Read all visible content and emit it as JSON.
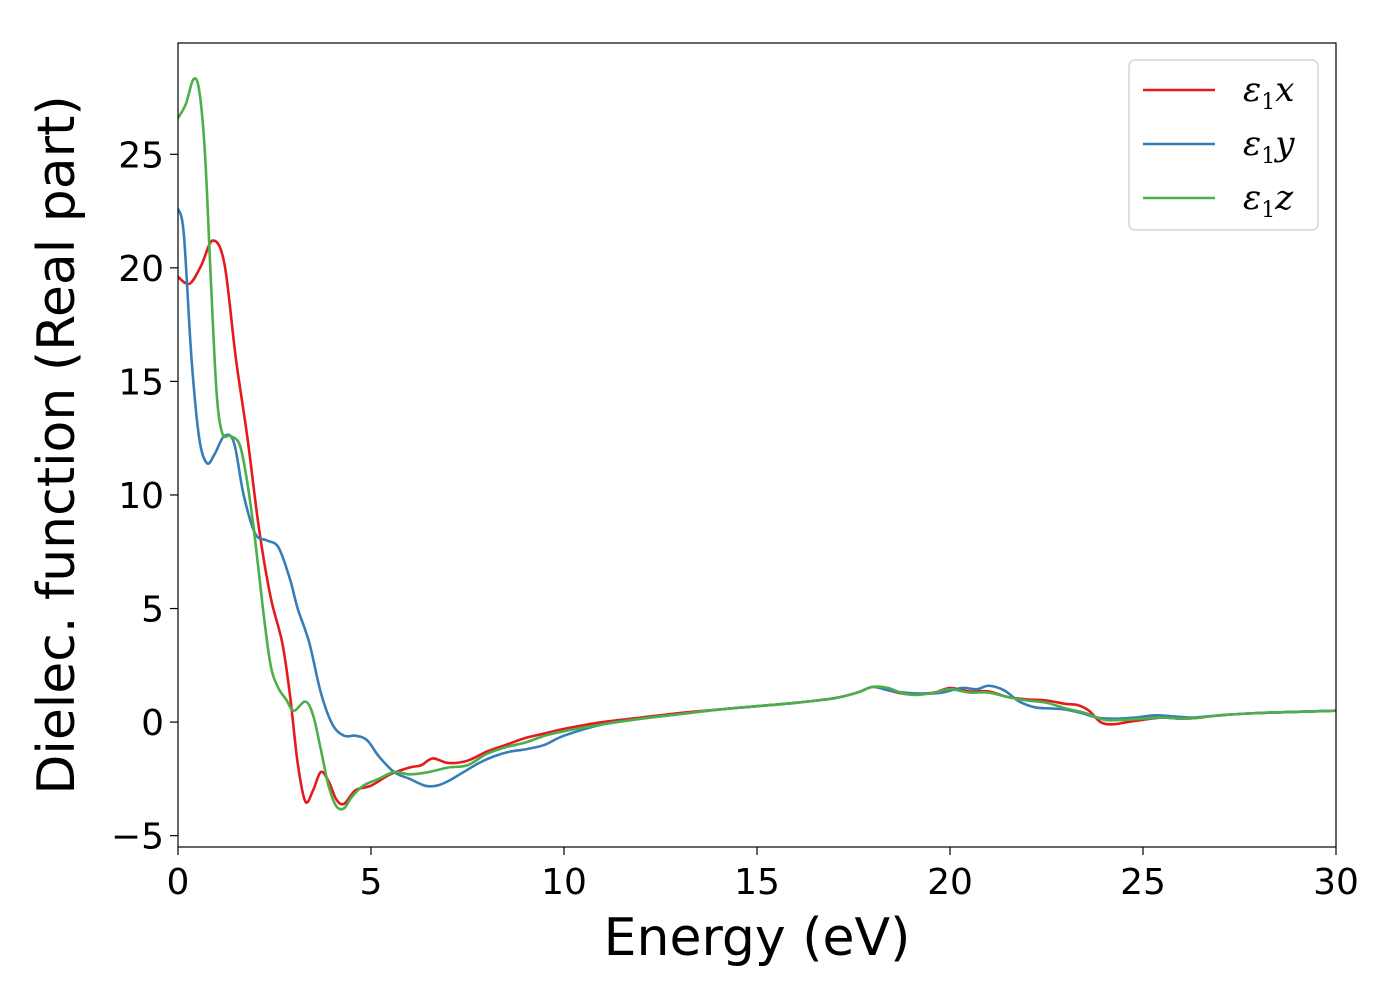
{
  "chart_data": {
    "type": "line",
    "title": "",
    "xlabel": "Energy (eV)",
    "ylabel": "Dielec. function (Real part)",
    "xlim": [
      0,
      30
    ],
    "ylim": [
      -5.5,
      29.9
    ],
    "xticks": [
      0,
      5,
      10,
      15,
      20,
      25,
      30
    ],
    "yticks": [
      -5,
      0,
      5,
      10,
      15,
      20,
      25
    ],
    "xtick_labels": [
      "0",
      "5",
      "10",
      "15",
      "20",
      "25",
      "30"
    ],
    "ytick_labels": [
      "−5",
      "0",
      "5",
      "10",
      "15",
      "20",
      "25"
    ],
    "grid": false,
    "legend_position": "top-right",
    "series": [
      {
        "name": "ε₁x",
        "symbol": "ε",
        "subscript": "1",
        "component": "x",
        "color": "#e41a1c",
        "x": [
          0,
          0.3,
          0.6,
          0.9,
          1.2,
          1.5,
          1.8,
          2.1,
          2.4,
          2.7,
          2.9,
          3.1,
          3.3,
          3.5,
          3.7,
          3.9,
          4.1,
          4.3,
          4.6,
          5.0,
          5.5,
          6.0,
          6.3,
          6.6,
          7.0,
          7.5,
          8.0,
          8.5,
          9.0,
          9.5,
          10,
          11,
          12,
          13,
          14,
          15,
          16,
          17,
          17.6,
          18.0,
          18.4,
          18.8,
          19.2,
          19.6,
          20.0,
          20.5,
          21.0,
          21.5,
          22.0,
          22.5,
          23.0,
          23.3,
          23.6,
          23.9,
          24.2,
          24.6,
          25.0,
          25.5,
          26.0,
          26.5,
          27,
          28,
          29,
          30
        ],
        "y": [
          19.6,
          19.3,
          20.1,
          21.2,
          20.2,
          16.0,
          12.5,
          8.5,
          5.5,
          3.5,
          1.2,
          -1.8,
          -3.5,
          -3.0,
          -2.2,
          -2.6,
          -3.4,
          -3.6,
          -3.0,
          -2.8,
          -2.3,
          -2.0,
          -1.9,
          -1.6,
          -1.8,
          -1.7,
          -1.3,
          -1.0,
          -0.7,
          -0.5,
          -0.3,
          0.0,
          0.2,
          0.4,
          0.55,
          0.7,
          0.85,
          1.05,
          1.3,
          1.55,
          1.4,
          1.25,
          1.25,
          1.3,
          1.5,
          1.35,
          1.35,
          1.1,
          1.0,
          0.95,
          0.8,
          0.75,
          0.5,
          0.0,
          -0.1,
          0.0,
          0.1,
          0.2,
          0.15,
          0.2,
          0.3,
          0.4,
          0.45,
          0.5
        ]
      },
      {
        "name": "ε₁y",
        "symbol": "ε",
        "subscript": "1",
        "component": "y",
        "color": "#377eb8",
        "x": [
          0,
          0.15,
          0.35,
          0.55,
          0.75,
          0.95,
          1.2,
          1.45,
          1.7,
          2.0,
          2.3,
          2.6,
          2.9,
          3.1,
          3.4,
          3.7,
          4.0,
          4.3,
          4.6,
          4.9,
          5.2,
          5.6,
          6.0,
          6.4,
          6.7,
          7.0,
          7.4,
          7.8,
          8.2,
          8.6,
          9.0,
          9.5,
          10,
          11,
          12,
          13,
          14,
          15,
          16,
          17,
          17.6,
          18.0,
          18.4,
          18.8,
          19.3,
          19.8,
          20.3,
          20.7,
          21.0,
          21.4,
          21.8,
          22.2,
          22.6,
          23.0,
          23.4,
          23.8,
          24.2,
          24.8,
          25.3,
          25.8,
          26.3,
          27,
          28,
          29,
          30
        ],
        "y": [
          22.6,
          21.5,
          16.0,
          12.5,
          11.4,
          11.8,
          12.6,
          12.3,
          10.0,
          8.3,
          8.0,
          7.7,
          6.3,
          5.0,
          3.5,
          1.3,
          -0.1,
          -0.6,
          -0.6,
          -0.8,
          -1.5,
          -2.2,
          -2.5,
          -2.8,
          -2.8,
          -2.6,
          -2.2,
          -1.8,
          -1.5,
          -1.3,
          -1.2,
          -1.0,
          -0.6,
          -0.1,
          0.15,
          0.35,
          0.55,
          0.7,
          0.85,
          1.05,
          1.3,
          1.55,
          1.4,
          1.3,
          1.25,
          1.3,
          1.5,
          1.45,
          1.6,
          1.4,
          0.9,
          0.65,
          0.6,
          0.55,
          0.4,
          0.2,
          0.15,
          0.2,
          0.3,
          0.25,
          0.2,
          0.3,
          0.4,
          0.45,
          0.5
        ]
      },
      {
        "name": "ε₁z",
        "symbol": "ε",
        "subscript": "1",
        "component": "z",
        "color": "#4daf4a",
        "x": [
          0,
          0.2,
          0.4,
          0.55,
          0.7,
          0.85,
          1.0,
          1.15,
          1.35,
          1.6,
          1.8,
          2.0,
          2.2,
          2.4,
          2.6,
          2.8,
          3.0,
          3.3,
          3.5,
          3.7,
          3.9,
          4.1,
          4.3,
          4.5,
          4.8,
          5.2,
          5.6,
          6.0,
          6.5,
          7.0,
          7.5,
          8.0,
          8.5,
          9.0,
          9.5,
          10,
          11,
          12,
          13,
          14,
          15,
          16,
          17,
          17.6,
          18.0,
          18.4,
          18.8,
          19.2,
          19.6,
          20.0,
          20.5,
          21.0,
          21.5,
          22.0,
          22.5,
          23.0,
          23.5,
          24.0,
          24.5,
          25.0,
          25.5,
          26.0,
          26.5,
          27,
          28,
          29,
          30
        ],
        "y": [
          26.6,
          27.2,
          28.3,
          27.8,
          25.0,
          19.5,
          14.5,
          12.7,
          12.6,
          12.2,
          10.5,
          8.0,
          5.0,
          2.5,
          1.5,
          1.0,
          0.5,
          0.9,
          0.3,
          -1.2,
          -2.8,
          -3.7,
          -3.8,
          -3.3,
          -2.8,
          -2.5,
          -2.2,
          -2.3,
          -2.2,
          -2.0,
          -1.9,
          -1.4,
          -1.1,
          -0.9,
          -0.6,
          -0.4,
          -0.1,
          0.15,
          0.35,
          0.55,
          0.7,
          0.85,
          1.05,
          1.3,
          1.55,
          1.5,
          1.25,
          1.2,
          1.3,
          1.45,
          1.3,
          1.3,
          1.1,
          0.95,
          0.85,
          0.6,
          0.4,
          0.1,
          0.1,
          0.15,
          0.2,
          0.15,
          0.2,
          0.3,
          0.4,
          0.45,
          0.5
        ]
      }
    ]
  }
}
